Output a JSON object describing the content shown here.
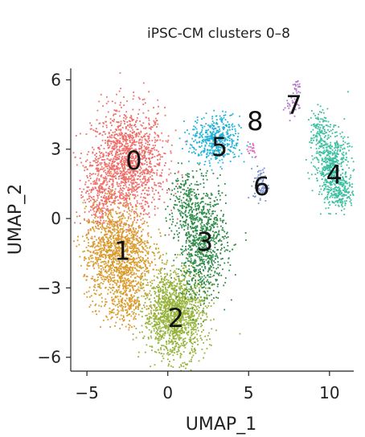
{
  "chart_data": {
    "type": "scatter",
    "title": "iPSC-CM clusters 0–8",
    "xlabel": "UMAP_1",
    "ylabel": "UMAP_2",
    "xlim": [
      -6,
      11.5
    ],
    "ylim": [
      -6.6,
      6.5
    ],
    "x_ticks": [
      {
        "value": -5,
        "label": "−5"
      },
      {
        "value": 0,
        "label": "0"
      },
      {
        "value": 5,
        "label": "5"
      },
      {
        "value": 10,
        "label": "10"
      }
    ],
    "y_ticks": [
      {
        "value": 6,
        "label": "6"
      },
      {
        "value": 3,
        "label": "3"
      },
      {
        "value": 0,
        "label": "0"
      },
      {
        "value": -3,
        "label": "−3"
      },
      {
        "value": -6,
        "label": "−6"
      }
    ],
    "grid": false,
    "legend": "none",
    "clusters": [
      {
        "label": "0",
        "color": "#ee6f6a",
        "label_pos": [
          -2.1,
          2.5
        ]
      },
      {
        "label": "1",
        "color": "#d89a2a",
        "label_pos": [
          -2.8,
          -1.4
        ]
      },
      {
        "label": "2",
        "color": "#95b23a",
        "label_pos": [
          0.5,
          -4.3
        ]
      },
      {
        "label": "3",
        "color": "#2e8b48",
        "label_pos": [
          2.3,
          -1.0
        ]
      },
      {
        "label": "4",
        "color": "#3cbfa0",
        "label_pos": [
          10.3,
          1.9
        ]
      },
      {
        "label": "5",
        "color": "#22b2d8",
        "label_pos": [
          3.2,
          3.1
        ]
      },
      {
        "label": "6",
        "color": "#7b8fd0",
        "label_pos": [
          5.8,
          1.4
        ]
      },
      {
        "label": "7",
        "color": "#b375c6",
        "label_pos": [
          7.8,
          4.9
        ]
      },
      {
        "label": "8",
        "color": "#e26ab8",
        "label_pos": [
          5.4,
          4.2
        ]
      }
    ]
  }
}
